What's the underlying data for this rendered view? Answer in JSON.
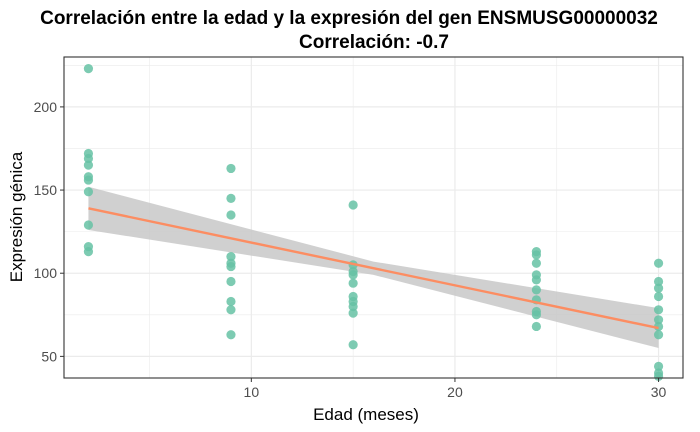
{
  "chart_data": {
    "type": "scatter",
    "title": "Correlación entre la edad y la expresión del gen ENSMUSG00000032",
    "subtitle": "Correlación: -0.7",
    "xlabel": "Edad (meses)",
    "ylabel": "Expresión génica",
    "xlim": [
      0.8,
      31.2
    ],
    "ylim": [
      37,
      230
    ],
    "xticks": [
      10,
      20,
      30
    ],
    "yticks": [
      50,
      100,
      150,
      200
    ],
    "grid": true,
    "points": [
      {
        "x": 2,
        "y": 223
      },
      {
        "x": 2,
        "y": 172
      },
      {
        "x": 2,
        "y": 169
      },
      {
        "x": 2,
        "y": 165
      },
      {
        "x": 2,
        "y": 158
      },
      {
        "x": 2,
        "y": 156
      },
      {
        "x": 2,
        "y": 149
      },
      {
        "x": 2,
        "y": 129
      },
      {
        "x": 2,
        "y": 116
      },
      {
        "x": 2,
        "y": 113
      },
      {
        "x": 9,
        "y": 163
      },
      {
        "x": 9,
        "y": 145
      },
      {
        "x": 9,
        "y": 135
      },
      {
        "x": 9,
        "y": 110
      },
      {
        "x": 9,
        "y": 106
      },
      {
        "x": 9,
        "y": 104
      },
      {
        "x": 9,
        "y": 95
      },
      {
        "x": 9,
        "y": 83
      },
      {
        "x": 9,
        "y": 78
      },
      {
        "x": 9,
        "y": 63
      },
      {
        "x": 15,
        "y": 141
      },
      {
        "x": 15,
        "y": 105
      },
      {
        "x": 15,
        "y": 101
      },
      {
        "x": 15,
        "y": 99
      },
      {
        "x": 15,
        "y": 94
      },
      {
        "x": 15,
        "y": 86
      },
      {
        "x": 15,
        "y": 83
      },
      {
        "x": 15,
        "y": 80
      },
      {
        "x": 15,
        "y": 76
      },
      {
        "x": 15,
        "y": 57
      },
      {
        "x": 24,
        "y": 113
      },
      {
        "x": 24,
        "y": 111
      },
      {
        "x": 24,
        "y": 106
      },
      {
        "x": 24,
        "y": 99
      },
      {
        "x": 24,
        "y": 96
      },
      {
        "x": 24,
        "y": 90
      },
      {
        "x": 24,
        "y": 84
      },
      {
        "x": 24,
        "y": 77
      },
      {
        "x": 24,
        "y": 75
      },
      {
        "x": 24,
        "y": 68
      },
      {
        "x": 30,
        "y": 106
      },
      {
        "x": 30,
        "y": 95
      },
      {
        "x": 30,
        "y": 91
      },
      {
        "x": 30,
        "y": 86
      },
      {
        "x": 30,
        "y": 78
      },
      {
        "x": 30,
        "y": 72
      },
      {
        "x": 30,
        "y": 68
      },
      {
        "x": 30,
        "y": 63
      },
      {
        "x": 30,
        "y": 44
      },
      {
        "x": 30,
        "y": 40
      },
      {
        "x": 30,
        "y": 38
      }
    ],
    "trend_line": {
      "type": "linear",
      "from": {
        "x": 2,
        "y": 139
      },
      "to": {
        "x": 30,
        "y": 67
      },
      "ci_lower": [
        {
          "x": 2,
          "y": 126
        },
        {
          "x": 16,
          "y": 99
        },
        {
          "x": 30,
          "y": 55
        }
      ],
      "ci_upper": [
        {
          "x": 2,
          "y": 152
        },
        {
          "x": 16,
          "y": 107
        },
        {
          "x": 30,
          "y": 79
        }
      ]
    },
    "colors": {
      "points": "#66c2a5",
      "trend_line": "#fc8d62",
      "confidence_band": "#c8c8c8",
      "grid": "#ebebeb",
      "panel_border": "#333333"
    }
  }
}
